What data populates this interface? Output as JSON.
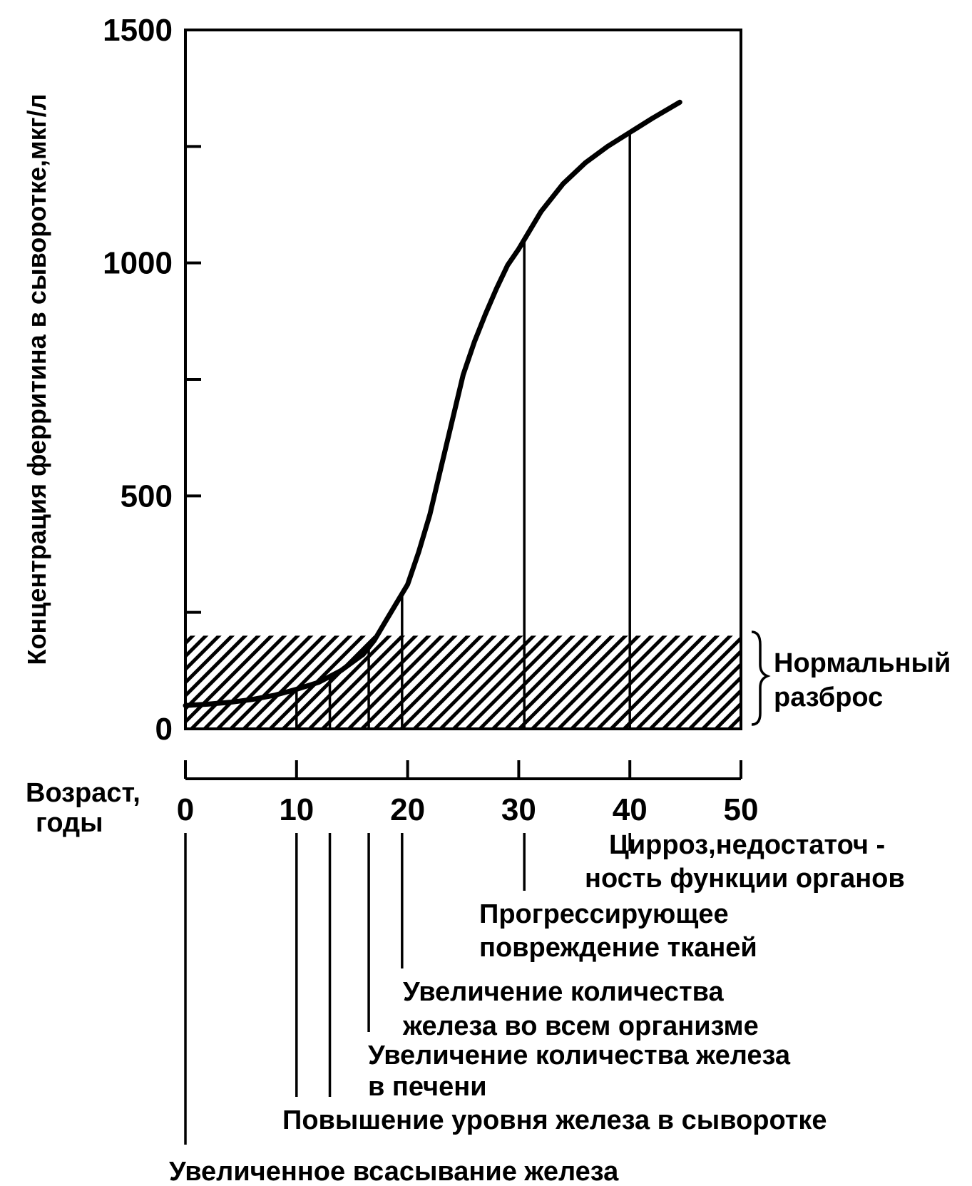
{
  "chart_data": {
    "type": "line",
    "title": "",
    "ylabel": "Концентрация ферритина в сыворотке,мкг/л",
    "xlabel_lines": [
      "Возраст,",
      "годы"
    ],
    "ylim": [
      0,
      1500
    ],
    "xlim": [
      0,
      50
    ],
    "y_ticks": [
      0,
      250,
      500,
      750,
      1000,
      1250,
      1500
    ],
    "y_tick_labels": [
      {
        "value": 0,
        "label": "0"
      },
      {
        "value": 500,
        "label": "500"
      },
      {
        "value": 1000,
        "label": "1000"
      },
      {
        "value": 1500,
        "label": "1500"
      }
    ],
    "x_ticks": [
      {
        "value": 0,
        "label": "0"
      },
      {
        "value": 10,
        "label": "10"
      },
      {
        "value": 20,
        "label": "20"
      },
      {
        "value": 30,
        "label": "30"
      },
      {
        "value": 40,
        "label": "40"
      },
      {
        "value": 50,
        "label": "50"
      }
    ],
    "curve": {
      "x": [
        0,
        2,
        4,
        6,
        8,
        10,
        12,
        14,
        16,
        17,
        18,
        19,
        20,
        21,
        22,
        23,
        24,
        25,
        26,
        27,
        28,
        29,
        30,
        32,
        34,
        36,
        38,
        40,
        42,
        44.5
      ],
      "y": [
        50,
        53,
        57,
        63,
        72,
        85,
        100,
        125,
        160,
        190,
        230,
        270,
        310,
        380,
        460,
        560,
        660,
        760,
        830,
        890,
        945,
        995,
        1030,
        1110,
        1170,
        1215,
        1250,
        1280,
        1310,
        1345
      ]
    },
    "normal_range": {
      "ymin": 0,
      "ymax": 200,
      "label_lines": [
        "Нормальный",
        "разброс"
      ]
    },
    "stages": [
      {
        "x": 0,
        "curve_line": false,
        "text_lines": [
          "Увеличенное  всасывание железа"
        ]
      },
      {
        "x": 10,
        "curve_line": true,
        "text_lines": [
          "Повышение уровня  железа в сыворотке"
        ]
      },
      {
        "x": 13,
        "curve_line": true,
        "text_lines": []
      },
      {
        "x": 16.5,
        "curve_line": true,
        "text_lines": [
          "Увеличение количества железа",
          "в печени"
        ]
      },
      {
        "x": 19.5,
        "curve_line": true,
        "text_lines": [
          "Увеличение  количества",
          "железа во всем организме"
        ]
      },
      {
        "x": 30.5,
        "curve_line": true,
        "text_lines": [
          "Прогрессирующее",
          "повреждение тканей"
        ]
      },
      {
        "x": 40,
        "curve_line": true,
        "text_lines": [
          "Цирроз,недостаточ -",
          "ность функции органов"
        ]
      }
    ]
  }
}
